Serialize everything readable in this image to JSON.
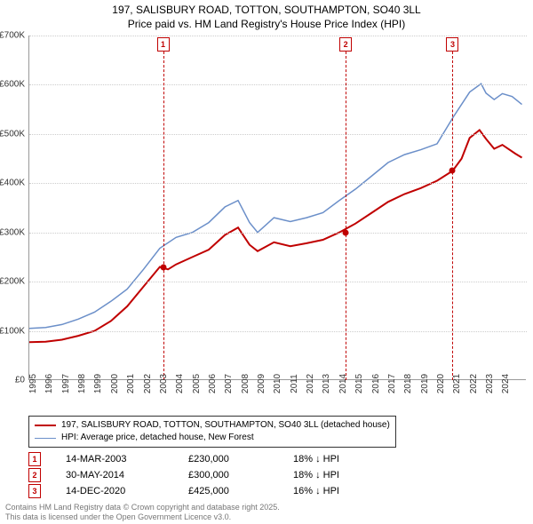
{
  "title_line1": "197, SALISBURY ROAD, TOTTON, SOUTHAMPTON, SO40 3LL",
  "title_line2": "Price paid vs. HM Land Registry's House Price Index (HPI)",
  "chart": {
    "type": "line",
    "background_color": "#ffffff",
    "grid_color": "#cccccc",
    "axis_color": "#999999",
    "label_fontsize": 10,
    "title_fontsize": 12,
    "x_years": [
      1995,
      1996,
      1997,
      1998,
      1999,
      2000,
      2001,
      2002,
      2003,
      2004,
      2005,
      2006,
      2007,
      2008,
      2009,
      2010,
      2011,
      2012,
      2013,
      2014,
      2015,
      2016,
      2017,
      2018,
      2019,
      2020,
      2021,
      2022,
      2023,
      2024
    ],
    "xlim": [
      1995,
      2025.5
    ],
    "ylim": [
      0,
      700000
    ],
    "ytick_step": 100000,
    "ytick_labels": [
      "£0",
      "£100K",
      "£200K",
      "£300K",
      "£400K",
      "£500K",
      "£600K",
      "£700K"
    ],
    "series": [
      {
        "name": "price_paid",
        "label": "197, SALISBURY ROAD, TOTTON, SOUTHAMPTON, SO40 3LL (detached house)",
        "color": "#c00000",
        "line_width": 2,
        "points": [
          [
            1995,
            77000
          ],
          [
            1996,
            78000
          ],
          [
            1997,
            82000
          ],
          [
            1998,
            90000
          ],
          [
            1999,
            100000
          ],
          [
            2000,
            120000
          ],
          [
            2001,
            150000
          ],
          [
            2002,
            190000
          ],
          [
            2003,
            230000
          ],
          [
            2003.5,
            225000
          ],
          [
            2004,
            235000
          ],
          [
            2005,
            250000
          ],
          [
            2006,
            265000
          ],
          [
            2007,
            295000
          ],
          [
            2007.8,
            310000
          ],
          [
            2008.5,
            275000
          ],
          [
            2009,
            262000
          ],
          [
            2010,
            280000
          ],
          [
            2011,
            272000
          ],
          [
            2012,
            278000
          ],
          [
            2013,
            285000
          ],
          [
            2014,
            300000
          ],
          [
            2015,
            318000
          ],
          [
            2016,
            340000
          ],
          [
            2017,
            362000
          ],
          [
            2018,
            378000
          ],
          [
            2019,
            390000
          ],
          [
            2020,
            405000
          ],
          [
            2020.95,
            425000
          ],
          [
            2021.5,
            450000
          ],
          [
            2022,
            492000
          ],
          [
            2022.6,
            508000
          ],
          [
            2023,
            490000
          ],
          [
            2023.5,
            470000
          ],
          [
            2024,
            478000
          ],
          [
            2024.8,
            460000
          ],
          [
            2025.2,
            452000
          ]
        ]
      },
      {
        "name": "hpi",
        "label": "HPI: Average price, detached house, New Forest",
        "color": "#6b8fc9",
        "line_width": 1.5,
        "points": [
          [
            1995,
            105000
          ],
          [
            1996,
            107000
          ],
          [
            1997,
            113000
          ],
          [
            1998,
            124000
          ],
          [
            1999,
            138000
          ],
          [
            2000,
            160000
          ],
          [
            2001,
            185000
          ],
          [
            2002,
            225000
          ],
          [
            2003,
            268000
          ],
          [
            2004,
            290000
          ],
          [
            2005,
            300000
          ],
          [
            2006,
            320000
          ],
          [
            2007,
            352000
          ],
          [
            2007.8,
            365000
          ],
          [
            2008.5,
            320000
          ],
          [
            2009,
            300000
          ],
          [
            2010,
            330000
          ],
          [
            2011,
            322000
          ],
          [
            2012,
            330000
          ],
          [
            2013,
            340000
          ],
          [
            2014,
            365000
          ],
          [
            2015,
            388000
          ],
          [
            2016,
            415000
          ],
          [
            2017,
            442000
          ],
          [
            2018,
            458000
          ],
          [
            2019,
            468000
          ],
          [
            2020,
            480000
          ],
          [
            2021,
            535000
          ],
          [
            2022,
            585000
          ],
          [
            2022.7,
            602000
          ],
          [
            2023,
            583000
          ],
          [
            2023.5,
            570000
          ],
          [
            2024,
            582000
          ],
          [
            2024.6,
            576000
          ],
          [
            2025.2,
            560000
          ]
        ]
      }
    ],
    "markers": [
      {
        "n": "1",
        "x": 2003.2,
        "dot_y": 230000
      },
      {
        "n": "2",
        "x": 2014.4,
        "dot_y": 300000
      },
      {
        "n": "3",
        "x": 2020.95,
        "dot_y": 425000
      }
    ],
    "marker_border_color": "#c00000",
    "dashed_line_color": "#c00000"
  },
  "events": [
    {
      "n": "1",
      "date": "14-MAR-2003",
      "price": "£230,000",
      "delta": "18% ↓ HPI"
    },
    {
      "n": "2",
      "date": "30-MAY-2014",
      "price": "£300,000",
      "delta": "18% ↓ HPI"
    },
    {
      "n": "3",
      "date": "14-DEC-2020",
      "price": "£425,000",
      "delta": "16% ↓ HPI"
    }
  ],
  "footer_line1": "Contains HM Land Registry data © Crown copyright and database right 2025.",
  "footer_line2": "This data is licensed under the Open Government Licence v3.0."
}
